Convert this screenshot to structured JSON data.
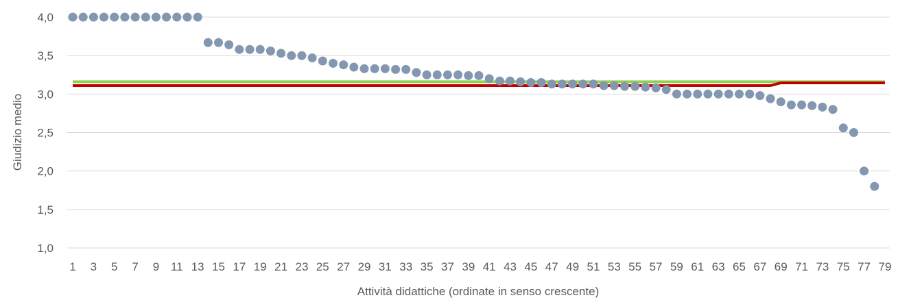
{
  "chart_data": {
    "type": "scatter",
    "xlabel": "Attività didattiche (ordinate in senso crescente)",
    "ylabel": "Giudizio medio",
    "ylim": [
      1.0,
      4.0
    ],
    "y_ticks": [
      "1,0",
      "1,5",
      "2,0",
      "2,5",
      "3,0",
      "3,5",
      "4,0"
    ],
    "x_range": [
      1,
      79
    ],
    "x_ticks": [
      "1",
      "3",
      "5",
      "7",
      "9",
      "11",
      "13",
      "15",
      "17",
      "19",
      "21",
      "23",
      "25",
      "27",
      "29",
      "31",
      "33",
      "35",
      "37",
      "39",
      "41",
      "43",
      "45",
      "47",
      "49",
      "51",
      "53",
      "55",
      "57",
      "59",
      "61",
      "63",
      "65",
      "67",
      "69",
      "71",
      "73",
      "75",
      "77",
      "79"
    ],
    "grid": true,
    "legend": "none",
    "points": {
      "x": [
        1,
        2,
        3,
        4,
        5,
        6,
        7,
        8,
        9,
        10,
        11,
        12,
        13,
        14,
        15,
        16,
        17,
        18,
        19,
        20,
        21,
        22,
        23,
        24,
        25,
        26,
        27,
        28,
        29,
        30,
        31,
        32,
        33,
        34,
        35,
        36,
        37,
        38,
        39,
        40,
        41,
        42,
        43,
        44,
        45,
        46,
        47,
        48,
        49,
        50,
        51,
        52,
        53,
        54,
        55,
        56,
        57,
        58,
        59,
        60,
        61,
        62,
        63,
        64,
        65,
        66,
        67,
        68,
        69,
        70,
        71,
        72,
        73,
        74,
        75,
        76,
        77,
        78
      ],
      "y": [
        4.0,
        4.0,
        4.0,
        4.0,
        4.0,
        4.0,
        4.0,
        4.0,
        4.0,
        4.0,
        4.0,
        4.0,
        4.0,
        3.67,
        3.67,
        3.64,
        3.58,
        3.58,
        3.58,
        3.56,
        3.53,
        3.5,
        3.5,
        3.47,
        3.43,
        3.4,
        3.38,
        3.35,
        3.33,
        3.33,
        3.33,
        3.32,
        3.32,
        3.28,
        3.25,
        3.25,
        3.25,
        3.25,
        3.24,
        3.24,
        3.2,
        3.17,
        3.17,
        3.16,
        3.15,
        3.15,
        3.13,
        3.13,
        3.13,
        3.13,
        3.13,
        3.11,
        3.11,
        3.1,
        3.1,
        3.09,
        3.08,
        3.06,
        3.0,
        3.0,
        3.0,
        3.0,
        3.0,
        3.0,
        3.0,
        3.0,
        2.98,
        2.94,
        2.9,
        2.86,
        2.86,
        2.85,
        2.83,
        2.8,
        2.56,
        2.5,
        2.0,
        1.8
      ],
      "color": "#8497B0"
    },
    "lines": [
      {
        "color": "#92D050",
        "values": [
          [
            1,
            3.16
          ],
          [
            79,
            3.16
          ]
        ]
      },
      {
        "color": "#C00000",
        "values": [
          [
            1,
            3.11
          ],
          [
            68,
            3.11
          ],
          [
            69,
            3.145
          ],
          [
            79,
            3.145
          ]
        ]
      }
    ]
  }
}
